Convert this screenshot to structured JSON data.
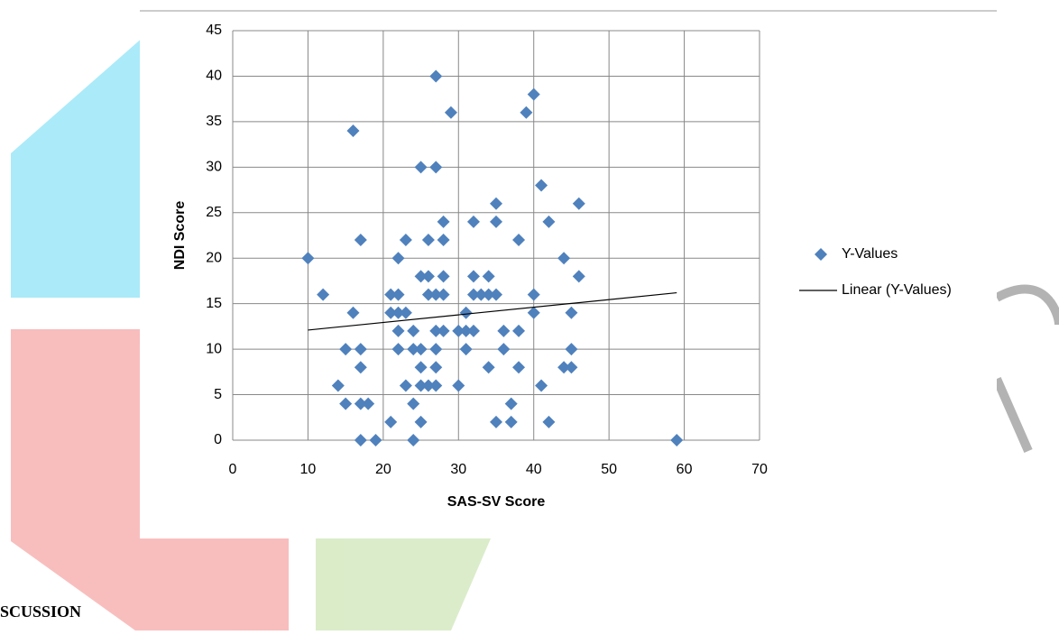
{
  "document": {
    "heading": "SCUSSION"
  },
  "chart_data": {
    "type": "scatter",
    "xlabel": "SAS-SV Score",
    "ylabel": "NDI Score",
    "xlim": [
      0,
      70
    ],
    "xticks": [
      0,
      10,
      20,
      30,
      40,
      50,
      60,
      70
    ],
    "ylim": [
      0,
      45
    ],
    "yticks": [
      0,
      5,
      10,
      15,
      20,
      25,
      30,
      35,
      40,
      45
    ],
    "grid": true,
    "legend": "right",
    "series": [
      {
        "name": "Y-Values",
        "color": "#4f81bd",
        "x": [
          10,
          12,
          14,
          15,
          15,
          16,
          16,
          17,
          17,
          17,
          17,
          17,
          18,
          19,
          21,
          21,
          21,
          22,
          22,
          22,
          22,
          22,
          23,
          23,
          23,
          24,
          24,
          24,
          24,
          25,
          25,
          25,
          25,
          25,
          25,
          26,
          26,
          26,
          26,
          27,
          27,
          27,
          27,
          27,
          27,
          27,
          28,
          28,
          28,
          28,
          28,
          29,
          30,
          30,
          31,
          31,
          31,
          32,
          32,
          32,
          32,
          33,
          34,
          34,
          34,
          35,
          35,
          35,
          35,
          36,
          36,
          37,
          37,
          38,
          38,
          38,
          39,
          40,
          40,
          40,
          41,
          41,
          42,
          42,
          44,
          44,
          45,
          45,
          45,
          46,
          46,
          59
        ],
        "values": [
          20,
          16,
          6,
          4,
          10,
          34,
          14,
          22,
          10,
          8,
          4,
          0,
          4,
          0,
          16,
          14,
          2,
          20,
          16,
          14,
          12,
          10,
          22,
          14,
          6,
          12,
          10,
          4,
          0,
          30,
          18,
          10,
          8,
          6,
          2,
          22,
          18,
          16,
          6,
          40,
          30,
          16,
          12,
          10,
          8,
          6,
          24,
          22,
          18,
          16,
          12,
          36,
          12,
          6,
          14,
          12,
          10,
          24,
          18,
          16,
          12,
          16,
          18,
          16,
          8,
          26,
          24,
          16,
          2,
          12,
          10,
          4,
          2,
          22,
          12,
          8,
          36,
          38,
          16,
          14,
          28,
          6,
          24,
          2,
          20,
          8,
          14,
          10,
          8,
          26,
          18,
          0
        ]
      },
      {
        "name": "Linear (Y-Values)",
        "color": "#000000",
        "type": "line",
        "x": [
          10,
          59
        ],
        "values": [
          12.1,
          16.2
        ]
      }
    ]
  }
}
